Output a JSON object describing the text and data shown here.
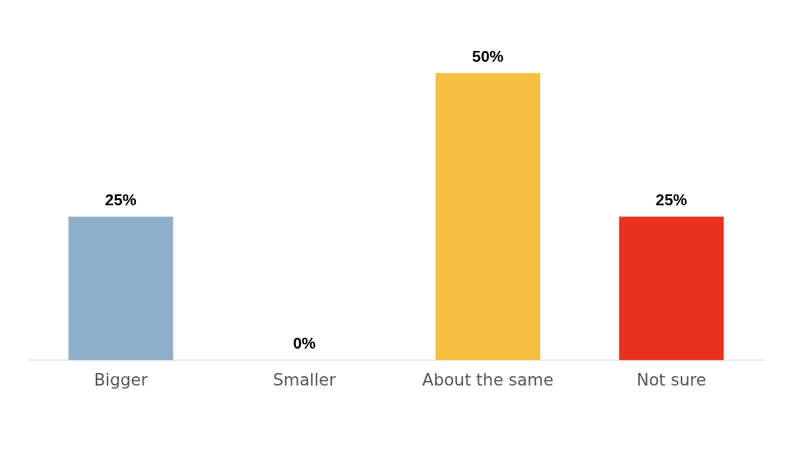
{
  "chart_data": {
    "type": "bar",
    "categories": [
      "Bigger",
      "Smaller",
      "About the same",
      "Not sure"
    ],
    "values": [
      25,
      0,
      50,
      25
    ],
    "colors": [
      "#8eafc9",
      "#a5a5a5",
      "#f5bf42",
      "#e8321f"
    ],
    "value_labels": [
      "25%",
      "0%",
      "50%",
      "25%"
    ],
    "grid": false,
    "legend": false
  }
}
